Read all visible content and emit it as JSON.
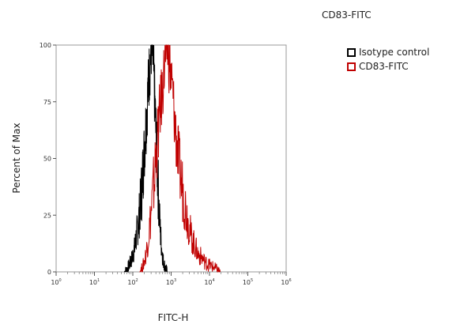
{
  "chart_data": {
    "type": "area",
    "title": "CD83-FITC",
    "xlabel": "FITC-H",
    "ylabel": "Percent of Max",
    "xscale": "log",
    "xlim": [
      1,
      1000000
    ],
    "ylim": [
      0,
      100
    ],
    "y_ticks": [
      "0",
      "25",
      "50",
      "75",
      "100"
    ],
    "x_ticks": [
      {
        "base": "10",
        "exp": "0"
      },
      {
        "base": "10",
        "exp": "1"
      },
      {
        "base": "10",
        "exp": "2"
      },
      {
        "base": "10",
        "exp": "3"
      },
      {
        "base": "10",
        "exp": "4"
      },
      {
        "base": "10",
        "exp": "5"
      },
      {
        "base": "10",
        "exp": "6"
      }
    ],
    "legend_position": "top-right",
    "series": [
      {
        "name": "Isotype control",
        "color": "#000000",
        "points": [
          [
            60,
            0
          ],
          [
            70,
            1
          ],
          [
            80,
            3
          ],
          [
            95,
            6
          ],
          [
            110,
            10
          ],
          [
            130,
            18
          ],
          [
            150,
            26
          ],
          [
            170,
            36
          ],
          [
            190,
            48
          ],
          [
            210,
            60
          ],
          [
            230,
            70
          ],
          [
            250,
            80
          ],
          [
            270,
            88
          ],
          [
            290,
            95
          ],
          [
            310,
            100
          ],
          [
            340,
            92
          ],
          [
            370,
            78
          ],
          [
            400,
            62
          ],
          [
            440,
            44
          ],
          [
            480,
            30
          ],
          [
            520,
            18
          ],
          [
            570,
            10
          ],
          [
            620,
            5
          ],
          [
            700,
            2
          ],
          [
            800,
            0
          ]
        ]
      },
      {
        "name": "CD83-FITC",
        "color": "#c00000",
        "points": [
          [
            150,
            0
          ],
          [
            180,
            2
          ],
          [
            210,
            6
          ],
          [
            250,
            14
          ],
          [
            300,
            26
          ],
          [
            350,
            38
          ],
          [
            400,
            50
          ],
          [
            470,
            64
          ],
          [
            550,
            76
          ],
          [
            640,
            86
          ],
          [
            720,
            95
          ],
          [
            800,
            100
          ],
          [
            900,
            92
          ],
          [
            1000,
            86
          ],
          [
            1150,
            74
          ],
          [
            1300,
            62
          ],
          [
            1500,
            52
          ],
          [
            1700,
            44
          ],
          [
            2000,
            36
          ],
          [
            2400,
            28
          ],
          [
            2800,
            22
          ],
          [
            3300,
            16
          ],
          [
            4000,
            12
          ],
          [
            5000,
            8
          ],
          [
            6500,
            6
          ],
          [
            8000,
            4
          ],
          [
            10000,
            3
          ],
          [
            13000,
            2
          ],
          [
            16000,
            1
          ],
          [
            19000,
            0
          ]
        ]
      }
    ]
  }
}
